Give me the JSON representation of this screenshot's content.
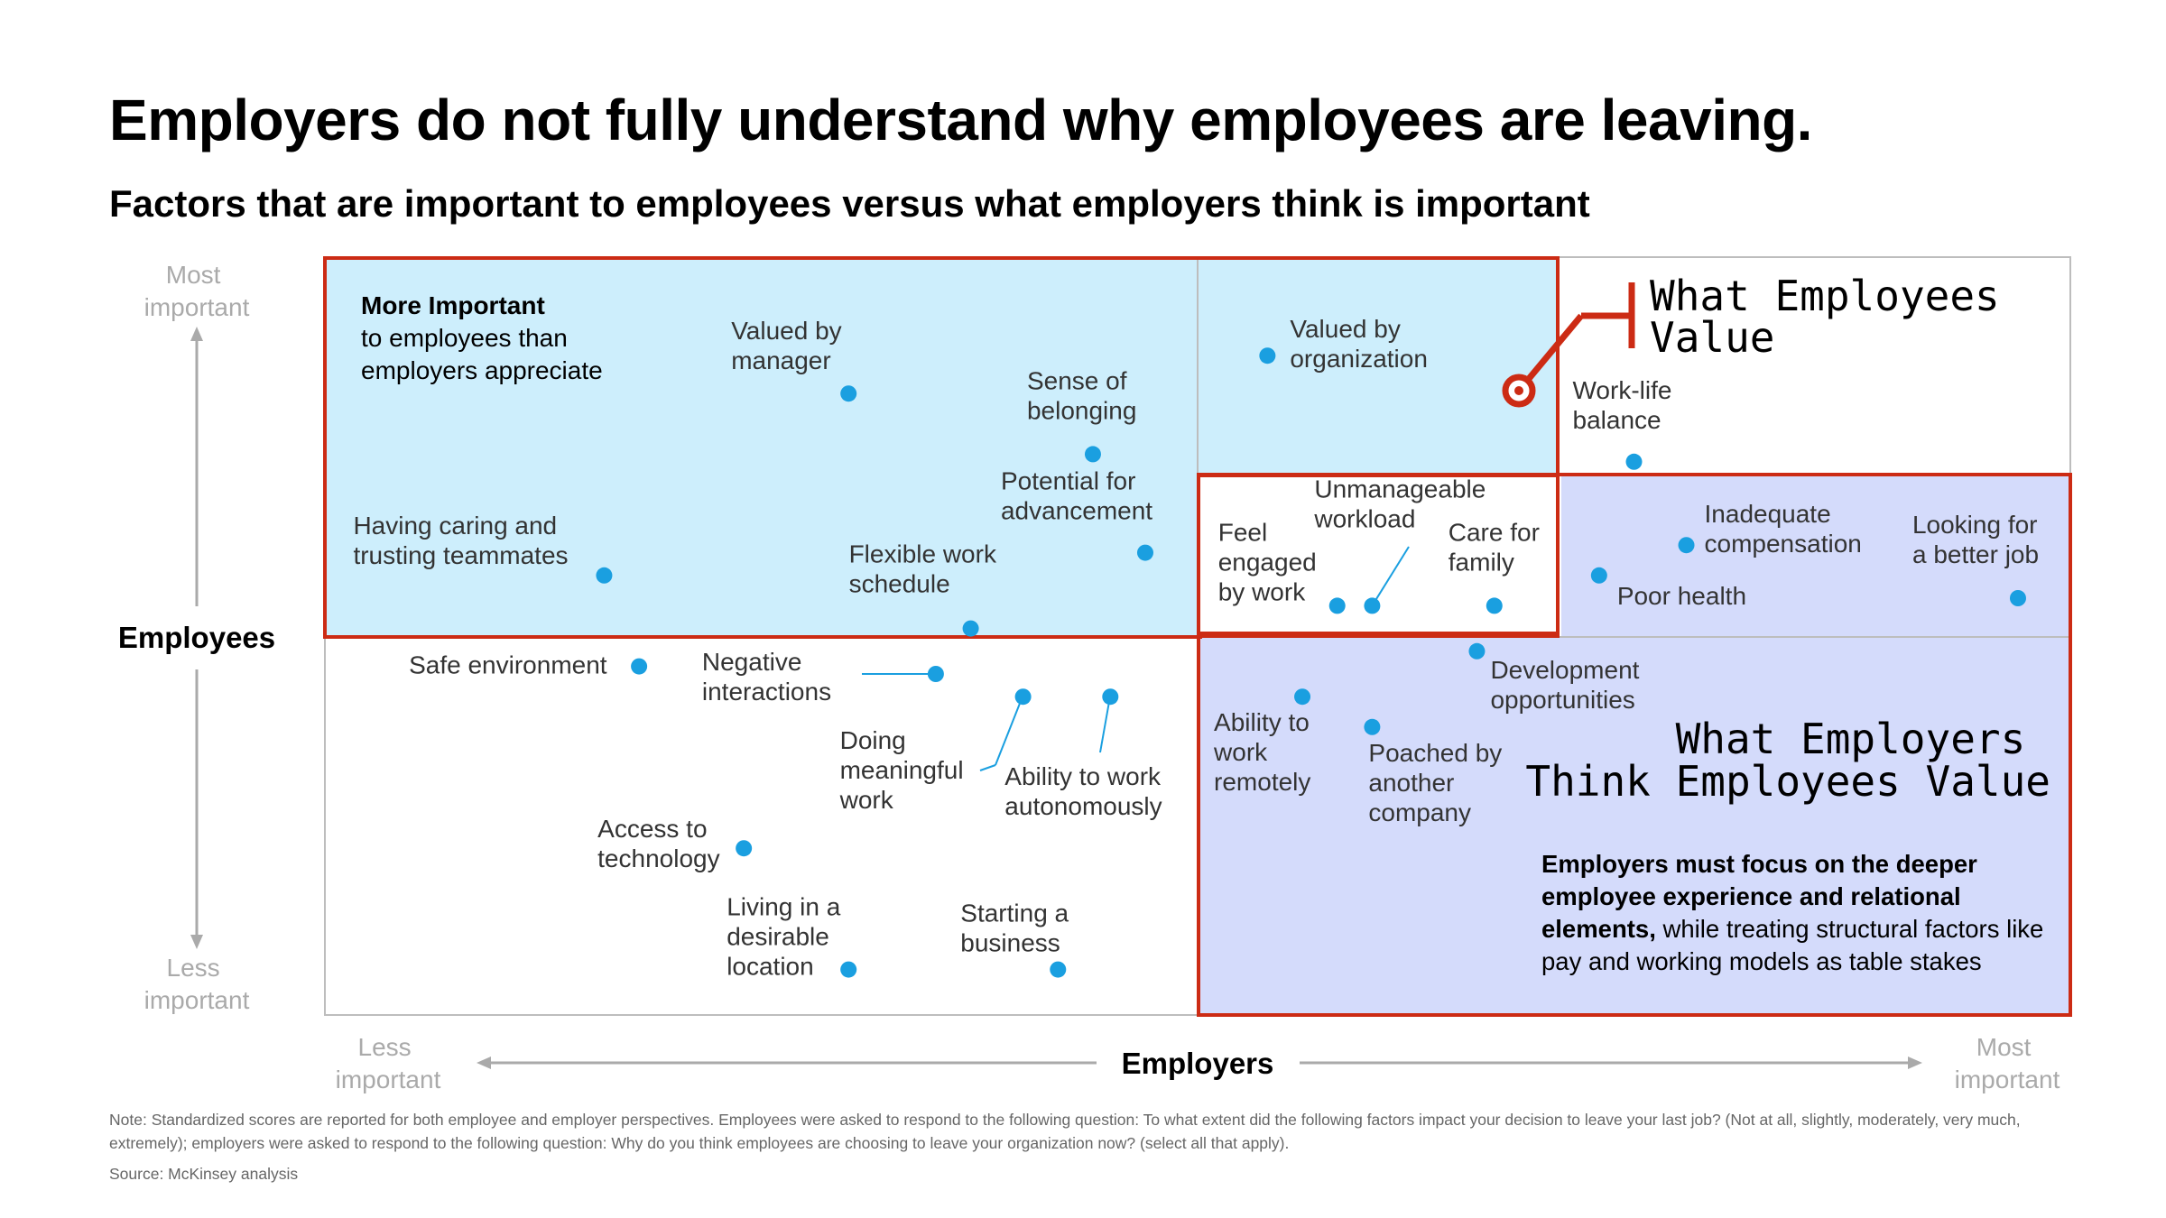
{
  "title": "Employers do not fully understand why employees are leaving.",
  "subtitle": "Factors that are important to employees versus what employers think is important",
  "chart_data": {
    "type": "scatter",
    "xlabel": "Employers",
    "ylabel": "Employees",
    "x_ticks": {
      "low": "Less important",
      "high": "Most important"
    },
    "y_ticks": {
      "low": "Less important",
      "high": "Most important"
    },
    "point_color": "#1a9fe0",
    "points": [
      {
        "label": "Valued by manager",
        "x": 0.3,
        "y": 0.82
      },
      {
        "label": "Sense of belonging",
        "x": 0.44,
        "y": 0.74
      },
      {
        "label": "Having caring and trusting teammates",
        "x": 0.16,
        "y": 0.58
      },
      {
        "label": "Potential for advancement",
        "x": 0.47,
        "y": 0.61
      },
      {
        "label": "Flexible work schedule",
        "x": 0.37,
        "y": 0.51
      },
      {
        "label": "Valued by organization",
        "x": 0.54,
        "y": 0.87
      },
      {
        "label": "Work-life balance",
        "x": 0.75,
        "y": 0.73
      },
      {
        "label": "Feel engaged by work",
        "x": 0.58,
        "y": 0.54
      },
      {
        "label": "Unmanageable workload",
        "x": 0.6,
        "y": 0.54
      },
      {
        "label": "Care for family",
        "x": 0.67,
        "y": 0.54
      },
      {
        "label": "Poor health",
        "x": 0.73,
        "y": 0.58
      },
      {
        "label": "Inadequate compensation",
        "x": 0.78,
        "y": 0.62
      },
      {
        "label": "Looking for a better job",
        "x": 0.97,
        "y": 0.55
      },
      {
        "label": "Safe environment",
        "x": 0.18,
        "y": 0.46
      },
      {
        "label": "Negative interactions",
        "x": 0.35,
        "y": 0.45
      },
      {
        "label": "Doing meaningful work",
        "x": 0.4,
        "y": 0.42
      },
      {
        "label": "Ability to work autonomously",
        "x": 0.45,
        "y": 0.42
      },
      {
        "label": "Development opportunities",
        "x": 0.66,
        "y": 0.48
      },
      {
        "label": "Ability to work remotely",
        "x": 0.56,
        "y": 0.42
      },
      {
        "label": "Poached by another company",
        "x": 0.6,
        "y": 0.38
      },
      {
        "label": "Access to technology",
        "x": 0.24,
        "y": 0.22
      },
      {
        "label": "Living in a desirable location",
        "x": 0.3,
        "y": 0.06
      },
      {
        "label": "Starting a business",
        "x": 0.42,
        "y": 0.06
      }
    ],
    "regions": {
      "employees": {
        "label": "What Employees Value",
        "color": "#cc2b14"
      },
      "more_important": {
        "heading": "More Important",
        "text": "to employees than employers appreciate",
        "fill": "#cdeefc"
      },
      "employers": {
        "label": "What Employers Think Employees Value",
        "fill": "#d4dbfb"
      }
    }
  },
  "callout": {
    "bold": "Employers must focus on the deeper employee experience and relational elements,",
    "rest": " while treating structural factors like pay and working models as table stakes"
  },
  "note": "Note: Standardized scores are reported for both employee and employer perspectives. Employees were asked to respond to the following question: To what extent did the following factors impact your decision to leave your last job? (Not at all, slightly, moderately, very much, extremely); employers were asked to respond to the following question: Why do you think employees are choosing to leave your organization now? (select all that apply).",
  "source": "Source: McKinsey analysis"
}
